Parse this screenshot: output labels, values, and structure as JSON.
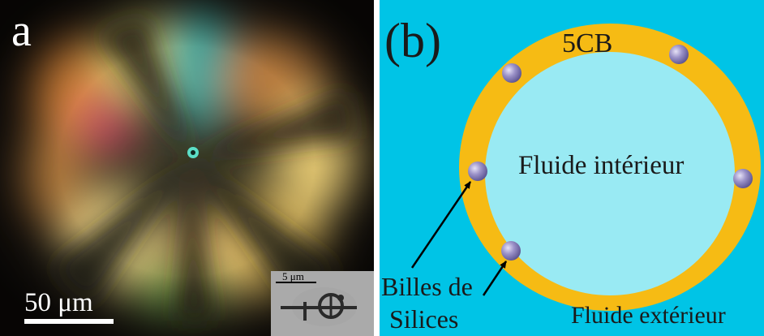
{
  "panel_a": {
    "label": "a",
    "scale_bar_label": "50 μm",
    "inset_scale_label": "5 μm",
    "description_colors": {
      "background": "#1a1510",
      "cross": "#241e16"
    }
  },
  "panel_b": {
    "label": "(b)",
    "shell_label": "5CB",
    "inner_label": "Fluide intérieur",
    "outer_label": "Fluide extérieur",
    "beads_label_line1": "Billes de",
    "beads_label_line2": "Silices",
    "colors": {
      "outer_fluid": "#00c4e6",
      "shell": "#f6bb14",
      "inner_fluid": "#99eaf3",
      "beads": "#8f86c0"
    }
  }
}
